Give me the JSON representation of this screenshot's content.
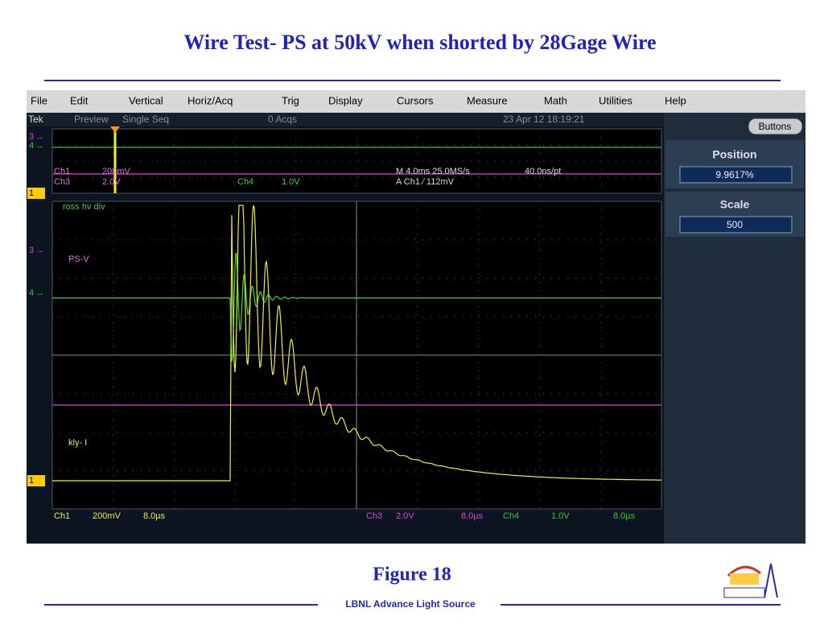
{
  "title": "Wire Test- PS at 50kV when shorted by 28Gage Wire",
  "menu": [
    "File",
    "Edit",
    "Vertical",
    "Horiz/Acq",
    "Trig",
    "Display",
    "Cursors",
    "Measure",
    "Math",
    "Utilities",
    "Help"
  ],
  "status": {
    "brand": "Tek",
    "mode": "Preview",
    "acq_mode": "Single Seq",
    "acqs": "0 Acqs",
    "timestamp": "23 Apr 12 18:19:21"
  },
  "readouts": {
    "ch1": "Ch1",
    "ch1_scale": "200mV",
    "ch3": "Ch3",
    "ch3_scale": "2.0V",
    "ch4": "Ch4",
    "ch4_scale": "1.0V",
    "horizontal": "M 4.0ms 25.0MS/s",
    "sample": "40.0ns/pt",
    "trigger": "A  Ch1  ⁄  112mV"
  },
  "trace_labels": {
    "top": "ross hv div",
    "middle": "PS-V",
    "bottom": "kly- I"
  },
  "markers": {
    "top": [
      "3",
      "4",
      "1"
    ],
    "main": [
      "3",
      "4",
      "1"
    ]
  },
  "side_panel": {
    "button": "Buttons",
    "position_label": "Position",
    "position_value": "9.9617%",
    "scale_label": "Scale",
    "scale_value": "500"
  },
  "bottom_bar": [
    "Ch1",
    "200mV",
    "8.0µs",
    "Ch3",
    "2.0V",
    "8.0µs",
    "Ch4",
    "1.0V",
    "8.0µs"
  ],
  "caption": "Figure 18",
  "footer": "LBNL Advance Light Source"
}
